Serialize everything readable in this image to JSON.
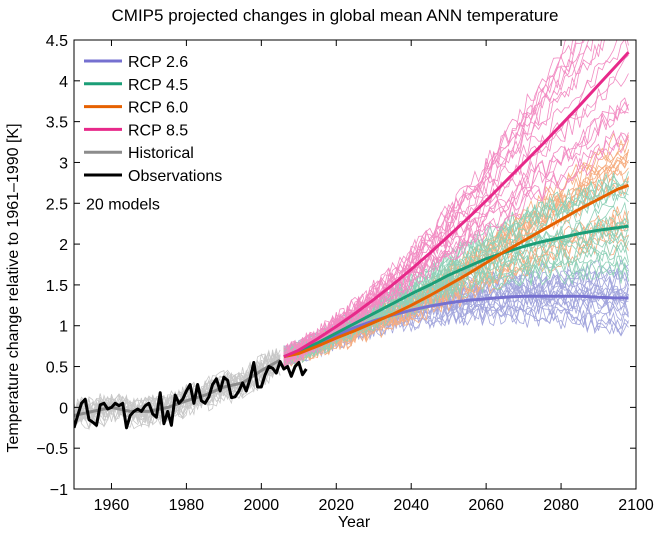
{
  "chart_data": {
    "type": "line",
    "title": "CMIP5 projected changes in global mean ANN temperature",
    "xlabel": "Year",
    "ylabel": "Temperature change relative to 1961–1990 [K]",
    "xlim": [
      1950,
      2100
    ],
    "ylim": [
      -1,
      4.5
    ],
    "x_ticks": [
      1960,
      1980,
      2000,
      2020,
      2040,
      2060,
      2080,
      2100
    ],
    "y_ticks": [
      -1,
      -0.5,
      0,
      0.5,
      1,
      1.5,
      2,
      2.5,
      3,
      3.5,
      4,
      4.5
    ],
    "grid": false,
    "legend_position": "top-left",
    "annotation": "20 models",
    "ensemble_model_count": 20,
    "series": [
      {
        "name": "RCP 2.6",
        "color": "#7570d0",
        "x": [
          2006,
          2010,
          2015,
          2020,
          2025,
          2030,
          2035,
          2040,
          2045,
          2050,
          2055,
          2060,
          2065,
          2070,
          2075,
          2080,
          2085,
          2090,
          2095,
          2098
        ],
        "values": [
          0.62,
          0.68,
          0.78,
          0.88,
          0.98,
          1.06,
          1.13,
          1.19,
          1.24,
          1.28,
          1.31,
          1.33,
          1.35,
          1.36,
          1.36,
          1.36,
          1.36,
          1.35,
          1.34,
          1.34
        ]
      },
      {
        "name": "RCP 4.5",
        "color": "#1b9e77",
        "x": [
          2006,
          2010,
          2015,
          2020,
          2025,
          2030,
          2035,
          2040,
          2045,
          2050,
          2055,
          2060,
          2065,
          2070,
          2075,
          2080,
          2085,
          2090,
          2095,
          2098
        ],
        "values": [
          0.62,
          0.68,
          0.79,
          0.91,
          1.03,
          1.15,
          1.27,
          1.39,
          1.5,
          1.62,
          1.72,
          1.82,
          1.9,
          1.97,
          2.03,
          2.08,
          2.13,
          2.17,
          2.2,
          2.22
        ]
      },
      {
        "name": "RCP 6.0",
        "color": "#e66101",
        "x": [
          2006,
          2010,
          2015,
          2020,
          2025,
          2030,
          2035,
          2040,
          2045,
          2050,
          2055,
          2060,
          2065,
          2070,
          2075,
          2080,
          2085,
          2090,
          2095,
          2098
        ],
        "values": [
          0.62,
          0.66,
          0.75,
          0.85,
          0.94,
          1.04,
          1.14,
          1.25,
          1.37,
          1.5,
          1.63,
          1.77,
          1.91,
          2.04,
          2.17,
          2.3,
          2.43,
          2.55,
          2.67,
          2.72
        ]
      },
      {
        "name": "RCP 8.5",
        "color": "#e7298a",
        "x": [
          2006,
          2010,
          2015,
          2020,
          2025,
          2030,
          2035,
          2040,
          2045,
          2050,
          2055,
          2060,
          2065,
          2070,
          2075,
          2080,
          2085,
          2090,
          2095,
          2098
        ],
        "values": [
          0.62,
          0.7,
          0.84,
          0.99,
          1.15,
          1.32,
          1.5,
          1.69,
          1.89,
          2.1,
          2.31,
          2.53,
          2.76,
          2.99,
          3.22,
          3.46,
          3.7,
          3.95,
          4.2,
          4.35
        ]
      },
      {
        "name": "Historical",
        "color": "#8c8c8c",
        "x": [
          1950,
          1955,
          1960,
          1965,
          1970,
          1975,
          1980,
          1985,
          1990,
          1995,
          2000,
          2005
        ],
        "values": [
          -0.1,
          -0.05,
          0.0,
          -0.05,
          -0.05,
          0.0,
          0.08,
          0.15,
          0.25,
          0.3,
          0.45,
          0.58
        ]
      },
      {
        "name": "Observations",
        "color": "#000000",
        "x": [
          1950,
          1951,
          1952,
          1953,
          1954,
          1955,
          1956,
          1957,
          1958,
          1959,
          1960,
          1961,
          1962,
          1963,
          1964,
          1965,
          1966,
          1967,
          1968,
          1969,
          1970,
          1971,
          1972,
          1973,
          1974,
          1975,
          1976,
          1977,
          1978,
          1979,
          1980,
          1981,
          1982,
          1983,
          1984,
          1985,
          1986,
          1987,
          1988,
          1989,
          1990,
          1991,
          1992,
          1993,
          1994,
          1995,
          1996,
          1997,
          1998,
          1999,
          2000,
          2001,
          2002,
          2003,
          2004,
          2005,
          2006,
          2007,
          2008,
          2009,
          2010,
          2011,
          2012
        ],
        "values": [
          -0.25,
          -0.1,
          0.05,
          0.1,
          -0.15,
          -0.18,
          -0.22,
          0.03,
          0.05,
          -0.02,
          0.0,
          0.05,
          0.02,
          0.05,
          -0.25,
          -0.1,
          -0.05,
          -0.02,
          -0.05,
          0.02,
          0.05,
          -0.08,
          -0.12,
          0.18,
          -0.2,
          -0.05,
          -0.22,
          0.15,
          0.05,
          0.1,
          0.2,
          0.28,
          0.05,
          0.28,
          0.08,
          0.05,
          0.13,
          0.28,
          0.35,
          0.2,
          0.37,
          0.33,
          0.12,
          0.13,
          0.2,
          0.3,
          0.2,
          0.35,
          0.55,
          0.25,
          0.25,
          0.4,
          0.5,
          0.48,
          0.42,
          0.56,
          0.47,
          0.5,
          0.38,
          0.5,
          0.55,
          0.4,
          0.47
        ]
      }
    ]
  }
}
